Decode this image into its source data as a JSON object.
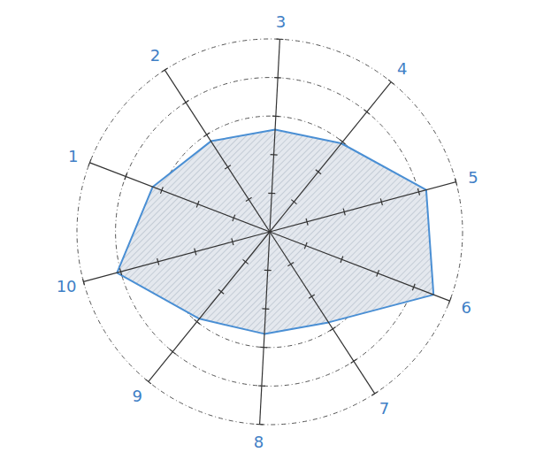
{
  "chart_data": {
    "type": "radar",
    "categories": [
      "1",
      "2",
      "3",
      "4",
      "5",
      "6",
      "7",
      "8",
      "9",
      "10"
    ],
    "values": [
      6.5,
      5.6,
      5.3,
      5.9,
      8.4,
      9.1,
      5.6,
      5.3,
      5.8,
      8.2
    ],
    "color": "#4a8fd4",
    "ylim": [
      0,
      10
    ],
    "yticks": [
      2,
      4,
      6,
      8,
      10
    ],
    "grid": true,
    "tick_labels": false
  }
}
